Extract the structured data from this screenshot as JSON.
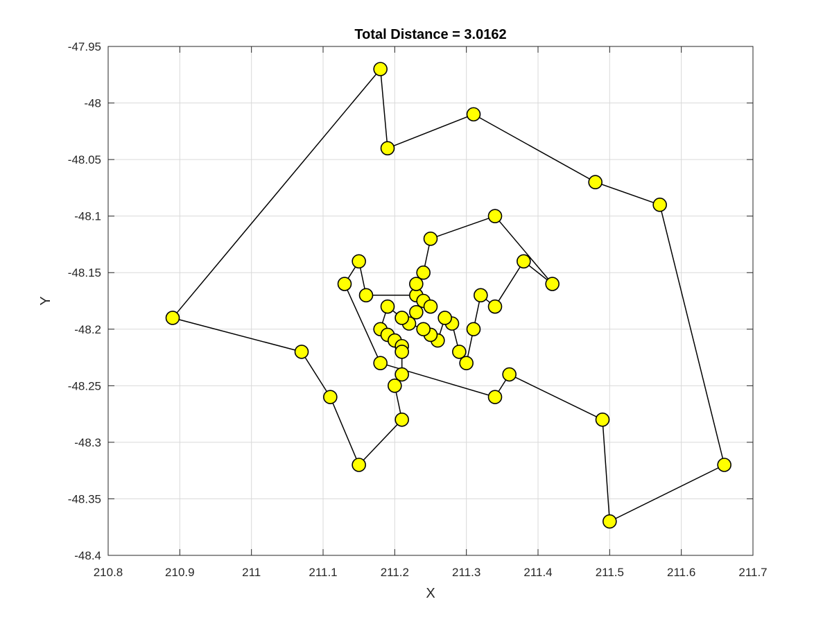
{
  "chart_data": {
    "type": "line",
    "title": "Total Distance = 3.0162",
    "xlabel": "X",
    "ylabel": "Y",
    "xlim": [
      210.8,
      211.7
    ],
    "ylim": [
      -48.4,
      -47.95
    ],
    "xticks": [
      "210.8",
      "210.9",
      "211",
      "211.1",
      "211.2",
      "211.3",
      "211.4",
      "211.5",
      "211.6",
      "211.7"
    ],
    "yticks": [
      "-47.95",
      "-48",
      "-48.05",
      "-48.1",
      "-48.15",
      "-48.2",
      "-48.25",
      "-48.3",
      "-48.35",
      "-48.4"
    ],
    "grid": true,
    "marker_color": "#ffff00",
    "line_color": "#000000",
    "route": [
      [
        211.18,
        -47.97
      ],
      [
        211.19,
        -48.04
      ],
      [
        211.31,
        -48.01
      ],
      [
        211.48,
        -48.07
      ],
      [
        211.57,
        -48.09
      ],
      [
        211.66,
        -48.32
      ],
      [
        211.5,
        -48.37
      ],
      [
        211.49,
        -48.28
      ],
      [
        211.36,
        -48.24
      ],
      [
        211.34,
        -48.26
      ],
      [
        211.18,
        -48.23
      ],
      [
        211.13,
        -48.16
      ],
      [
        211.15,
        -48.14
      ],
      [
        211.16,
        -48.17
      ],
      [
        211.23,
        -48.17
      ],
      [
        211.23,
        -48.16
      ],
      [
        211.24,
        -48.15
      ],
      [
        211.25,
        -48.12
      ],
      [
        211.34,
        -48.1
      ],
      [
        211.42,
        -48.16
      ],
      [
        211.38,
        -48.14
      ],
      [
        211.34,
        -48.18
      ],
      [
        211.32,
        -48.17
      ],
      [
        211.31,
        -48.2
      ],
      [
        211.3,
        -48.23
      ],
      [
        211.29,
        -48.22
      ],
      [
        211.28,
        -48.195
      ],
      [
        211.27,
        -48.19
      ],
      [
        211.26,
        -48.21
      ],
      [
        211.25,
        -48.205
      ],
      [
        211.24,
        -48.2
      ],
      [
        211.22,
        -48.195
      ],
      [
        211.21,
        -48.19
      ],
      [
        211.19,
        -48.18
      ],
      [
        211.18,
        -48.2
      ],
      [
        211.19,
        -48.205
      ],
      [
        211.2,
        -48.21
      ],
      [
        211.21,
        -48.215
      ],
      [
        211.21,
        -48.22
      ],
      [
        211.21,
        -48.24
      ],
      [
        211.2,
        -48.25
      ],
      [
        211.21,
        -48.28
      ],
      [
        211.15,
        -48.32
      ],
      [
        211.11,
        -48.26
      ],
      [
        211.07,
        -48.22
      ],
      [
        210.89,
        -48.19
      ],
      [
        211.18,
        -47.97
      ]
    ],
    "extra_points": [
      [
        211.23,
        -48.17
      ],
      [
        211.24,
        -48.175
      ],
      [
        211.25,
        -48.18
      ],
      [
        211.23,
        -48.185
      ]
    ]
  }
}
